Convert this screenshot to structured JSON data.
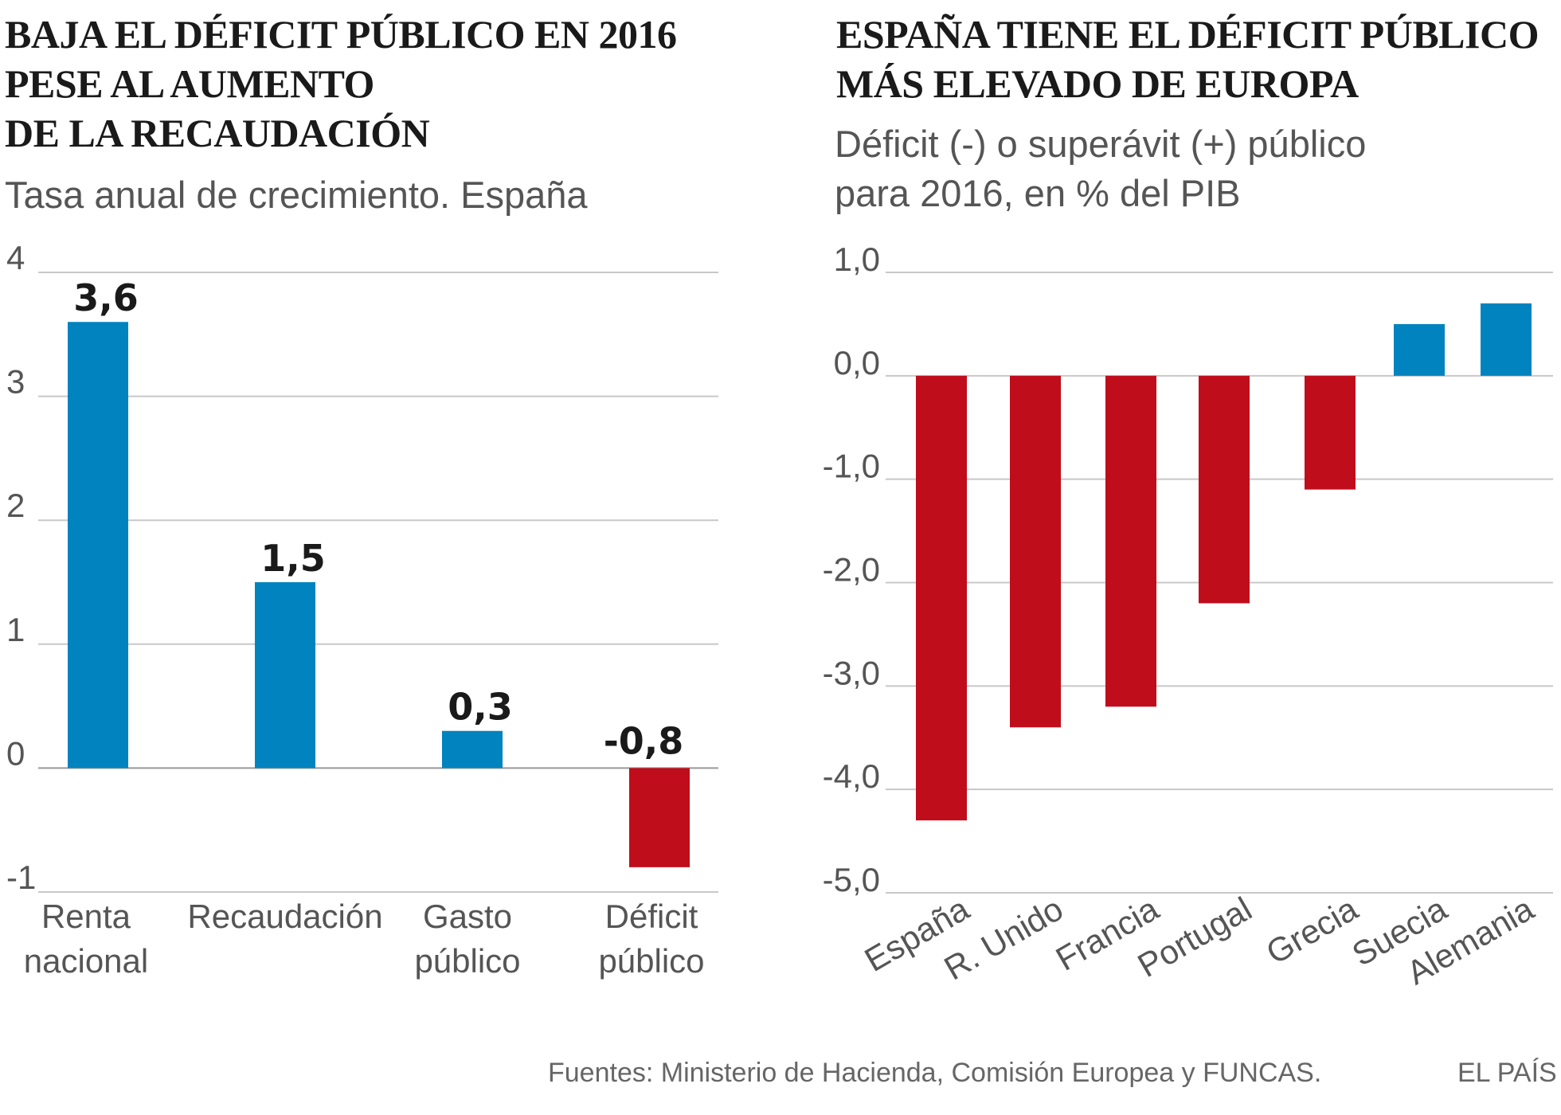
{
  "chart_data": [
    {
      "type": "bar",
      "title": "BAJA EL DÉFICIT PÚBLICO EN 2016 PESE AL AUMENTO DE LA RECAUDACIÓN",
      "title_lines": [
        "BAJA EL DÉFICIT PÚBLICO EN 2016",
        "PESE AL AUMENTO",
        "DE LA RECAUDACIÓN"
      ],
      "subtitle": "Tasa anual de crecimiento. España",
      "categories": [
        [
          "Renta",
          "nacional"
        ],
        [
          "Recaudación"
        ],
        [
          "Gasto",
          "público"
        ],
        [
          "Déficit",
          "público"
        ]
      ],
      "values": [
        3.6,
        1.5,
        0.3,
        -0.8
      ],
      "data_labels": [
        "3,6",
        "1,5",
        "0,3",
        "-0,8"
      ],
      "yticks": [
        4,
        3,
        2,
        1,
        0,
        -1
      ],
      "ytick_labels": [
        "4",
        "3",
        "2",
        "1",
        "0",
        "-1"
      ],
      "ylim": [
        -1,
        4
      ],
      "xlabel": "",
      "ylabel": "",
      "grid": true
    },
    {
      "type": "bar",
      "title": "ESPAÑA TIENE EL DÉFICIT PÚBLICO MÁS ELEVADO DE EUROPA",
      "title_lines": [
        "ESPAÑA TIENE EL DÉFICIT PÚBLICO",
        "MÁS ELEVADO DE EUROPA"
      ],
      "subtitle": "Déficit (-) o superávit (+) público para 2016, en % del PIB",
      "subtitle_lines": [
        "Déficit (-) o superávit (+) público",
        "para 2016, en % del PIB"
      ],
      "categories": [
        "España",
        "R. Unido",
        "Francia",
        "Portugal",
        "Grecia",
        "Suecia",
        "Alemania"
      ],
      "values": [
        -4.3,
        -3.4,
        -3.2,
        -2.2,
        -1.1,
        0.5,
        0.7
      ],
      "yticks": [
        1,
        0,
        -1,
        -2,
        -3,
        -4,
        -5
      ],
      "ytick_labels": [
        "1,0",
        "0,0",
        "-1,0",
        "-2,0",
        "-3,0",
        "-4,0",
        "-5,0"
      ],
      "ylim": [
        -5,
        1
      ],
      "xlabel": "",
      "ylabel": "",
      "grid": true
    }
  ],
  "colors": {
    "positive": "#0083be",
    "negative": "#c00d1c",
    "grid": "#c8c8c8",
    "text": "#555555"
  },
  "footer": {
    "sources": "Fuentes: Ministerio de Hacienda, Comisión Europea y FUNCAS.",
    "brand": "EL PAÍS"
  }
}
